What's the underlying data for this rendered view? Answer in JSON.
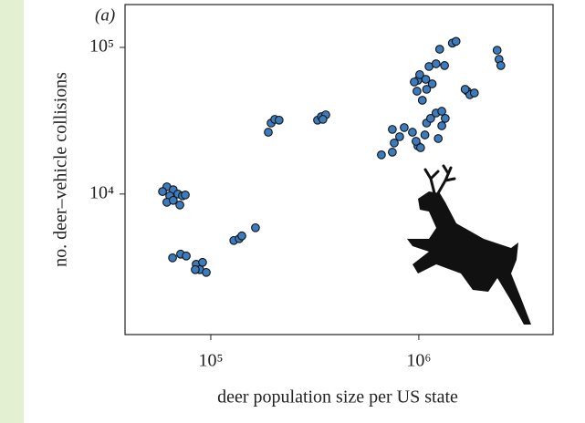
{
  "chart_data": {
    "type": "scatter",
    "title": "(a)",
    "x_label": "deer population size per US state",
    "y_label": "no. deer–vehicle collisions",
    "xscale": "log",
    "yscale": "log",
    "color": "#3b7cbf",
    "xlim": [
      38700,
      4420000
    ],
    "ylim": [
      1100,
      196000
    ],
    "xticks": [
      {
        "value": 100000,
        "label": "10⁵"
      },
      {
        "value": 1000000,
        "label": "10⁶"
      }
    ],
    "yticks": [
      {
        "value": 10000,
        "label": "10⁴"
      },
      {
        "value": 100000,
        "label": "10⁵"
      }
    ],
    "x": [
      61500,
      58600,
      66000,
      63500,
      69500,
      73100,
      61500,
      71000,
      66000,
      75400,
      65500,
      71600,
      76200,
      85100,
      88600,
      84200,
      95100,
      91300,
      129000,
      137000,
      141000,
      164000,
      189000,
      195000,
      203000,
      213000,
      326000,
      340000,
      357000,
      346000,
      661000,
      746000,
      762000,
      809000,
      746000,
      851000,
      932000,
      990000,
      970000,
      1020000,
      1070000,
      1090000,
      1140000,
      1240000,
      1290000,
      1210000,
      1290000,
      1340000,
      990000,
      1010000,
      951000,
      980000,
      1040000,
      1090000,
      1080000,
      1160000,
      1120000,
      1210000,
      1260000,
      1330000,
      1450000,
      1510000,
      1710000,
      1760000,
      1670000,
      1850000,
      2380000,
      2430000,
      2480000
    ],
    "values": [
      11200,
      10400,
      10700,
      9720,
      10000,
      9720,
      8790,
      8420,
      9050,
      9860,
      3670,
      3890,
      3780,
      3320,
      3050,
      3050,
      2920,
      3420,
      4820,
      4960,
      5180,
      5890,
      26400,
      30500,
      32300,
      31900,
      31900,
      33700,
      34700,
      32300,
      18500,
      19300,
      22300,
      24600,
      27600,
      28400,
      26400,
      21300,
      22900,
      20700,
      25300,
      30500,
      32800,
      23900,
      29200,
      35700,
      36700,
      32800,
      59700,
      65200,
      58100,
      50300,
      43600,
      51800,
      60600,
      56400,
      74100,
      77300,
      97200,
      75200,
      107000,
      110000,
      50300,
      47600,
      51800,
      48900,
      95700,
      83000,
      75200
    ]
  }
}
